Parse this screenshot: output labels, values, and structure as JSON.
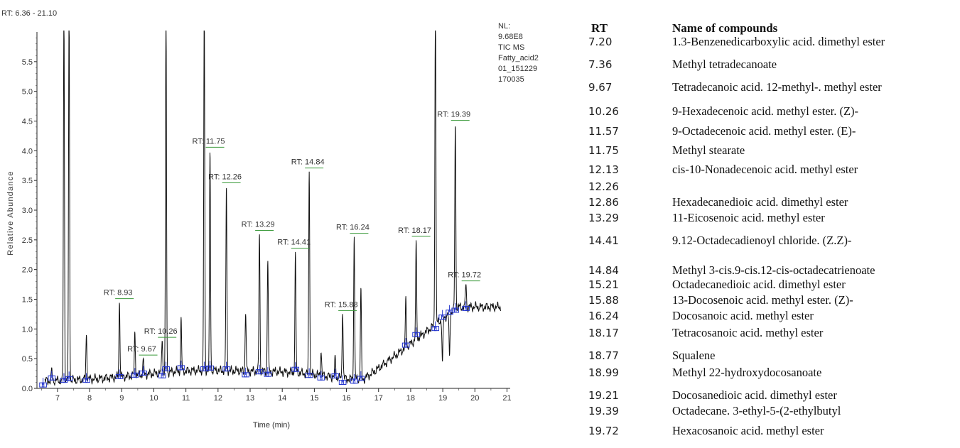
{
  "chart_data": {
    "type": "line",
    "range_label": "RT: 6.36 - 21.10",
    "xlabel": "Time (min)",
    "ylabel": "Relative Abundance",
    "xlim": [
      6.36,
      21.1
    ],
    "ylim": [
      0,
      6.0
    ],
    "x_ticks": [
      "7",
      "8",
      "9",
      "10",
      "11",
      "12",
      "13",
      "14",
      "15",
      "16",
      "17",
      "18",
      "19",
      "20",
      "21"
    ],
    "y_ticks": [
      "0.0",
      "0.5",
      "1.0",
      "1.5",
      "2.0",
      "2.5",
      "3.0",
      "3.5",
      "4.0",
      "4.5",
      "5.0",
      "5.5"
    ],
    "info_lines": [
      "NL:",
      "9.68E8",
      "TIC MS",
      "Fatty_acid2",
      "01_151229",
      "170035"
    ],
    "peaks": [
      {
        "rt": 6.55,
        "height": 0.3
      },
      {
        "rt": 6.82,
        "height": 0.35
      },
      {
        "rt": 7.2,
        "height": 6.5
      },
      {
        "rt": 7.36,
        "height": 6.5
      },
      {
        "rt": 7.9,
        "height": 0.9
      },
      {
        "rt": 8.93,
        "height": 1.45,
        "label": "RT: 8.93"
      },
      {
        "rt": 9.41,
        "height": 0.95
      },
      {
        "rt": 9.67,
        "height": 0.5,
        "label": "RT: 9.67"
      },
      {
        "rt": 10.26,
        "height": 0.8,
        "label": "RT: 10.26"
      },
      {
        "rt": 10.38,
        "height": 6.5
      },
      {
        "rt": 10.85,
        "height": 1.2
      },
      {
        "rt": 11.57,
        "height": 6.5
      },
      {
        "rt": 11.75,
        "height": 4.0,
        "label": "RT: 11.75"
      },
      {
        "rt": 12.26,
        "height": 3.4,
        "label": "RT: 12.26"
      },
      {
        "rt": 12.86,
        "height": 1.25
      },
      {
        "rt": 13.29,
        "height": 2.6,
        "label": "RT: 13.29"
      },
      {
        "rt": 13.55,
        "height": 2.15
      },
      {
        "rt": 14.41,
        "height": 2.3,
        "label": "RT: 14.41"
      },
      {
        "rt": 14.84,
        "height": 3.65,
        "label": "RT: 14.84"
      },
      {
        "rt": 15.21,
        "height": 0.6
      },
      {
        "rt": 15.65,
        "height": 0.55
      },
      {
        "rt": 15.88,
        "height": 1.25,
        "label": "RT: 15.88"
      },
      {
        "rt": 16.24,
        "height": 2.55,
        "label": "RT: 16.24"
      },
      {
        "rt": 16.45,
        "height": 1.7
      },
      {
        "rt": 17.85,
        "height": 1.55
      },
      {
        "rt": 18.17,
        "height": 2.5,
        "label": "RT: 18.17"
      },
      {
        "rt": 18.77,
        "height": 6.5
      },
      {
        "rt": 18.99,
        "height": 0.45
      },
      {
        "rt": 19.21,
        "height": 0.55
      },
      {
        "rt": 19.39,
        "height": 4.45,
        "label": "RT: 19.39"
      },
      {
        "rt": 19.72,
        "height": 1.75,
        "label": "RT: 19.72"
      }
    ]
  },
  "table": {
    "header_rt": "RT",
    "header_name": "Name of compounds",
    "rows": [
      {
        "rt": "7.20",
        "name": "1.3-Benzenedicarboxylic acid. dimethyl ester"
      },
      {
        "rt": "7.36",
        "name": "Methyl tetradecanoate"
      },
      {
        "rt": "9.67",
        "name": "Tetradecanoic acid. 12-methyl-. methyl ester"
      },
      {
        "rt": "10.26",
        "name": "9-Hexadecenoic acid. methyl ester. (Z)-"
      },
      {
        "rt": "11.57",
        "name": "9-Octadecenoic acid. methyl ester. (E)-"
      },
      {
        "rt": "11.75",
        "name": "Methyl stearate"
      },
      {
        "rt": "12.13",
        "name": "cis-10-Nonadecenoic acid. methyl ester"
      },
      {
        "rt": "12.26",
        "name": ""
      },
      {
        "rt": "12.86",
        "name": "Hexadecanedioic acid. dimethyl ester"
      },
      {
        "rt": "13.29",
        "name": "11-Eicosenoic acid. methyl ester"
      },
      {
        "rt": "14.41",
        "name": "9.12-Octadecadienoyl chloride. (Z.Z)-"
      },
      {
        "rt": "14.84",
        "name": "Methyl 3-cis.9-cis.12-cis-octadecatrienoate"
      },
      {
        "rt": "15.21",
        "name": "Octadecanedioic acid. dimethyl ester"
      },
      {
        "rt": "15.88",
        "name": "13-Docosenoic acid. methyl ester. (Z)-"
      },
      {
        "rt": "16.24",
        "name": "Docosanoic acid. methyl ester"
      },
      {
        "rt": "18.17",
        "name": "Tetracosanoic acid. methyl ester"
      },
      {
        "rt": "18.77",
        "name": "Squalene"
      },
      {
        "rt": "18.99",
        "name": "Methyl 22-hydroxydocosanoate"
      },
      {
        "rt": "19.21",
        "name": "Docosanedioic acid. dimethyl ester"
      },
      {
        "rt": "19.39",
        "name": "Octadecane. 3-ethyl-5-(2-ethylbutyl"
      },
      {
        "rt": "19.72",
        "name": "Hexacosanoic acid. methyl ester"
      }
    ]
  }
}
